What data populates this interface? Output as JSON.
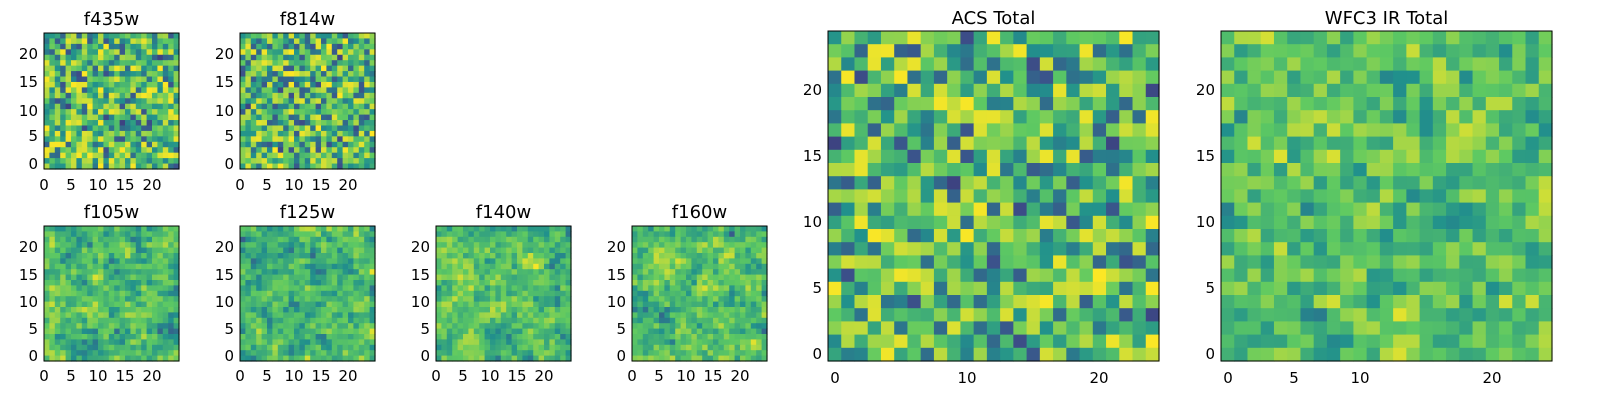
{
  "chart_data": [
    {
      "type": "heatmap",
      "title": "f435w",
      "grid_size": 25,
      "pixelation": 1,
      "seed": 11,
      "smooth": 0,
      "noise": 1.0,
      "x_ticks": [
        "0",
        "5",
        "10",
        "15",
        "20"
      ],
      "y_ticks": [
        "0",
        "5",
        "10",
        "15",
        "20"
      ],
      "colormap": "viridis",
      "grid": false
    },
    {
      "type": "heatmap",
      "title": "f814w",
      "grid_size": 25,
      "pixelation": 1,
      "seed": 23,
      "smooth": 0,
      "noise": 1.0,
      "x_ticks": [
        "0",
        "5",
        "10",
        "15",
        "20"
      ],
      "y_ticks": [
        "0",
        "5",
        "10",
        "15",
        "20"
      ],
      "colormap": "viridis",
      "grid": false
    },
    {
      "type": "heatmap",
      "title": "f105w",
      "grid_size": 25,
      "pixelation": 1,
      "seed": 37,
      "smooth": 1,
      "noise": 0.35,
      "x_ticks": [
        "0",
        "5",
        "10",
        "15",
        "20"
      ],
      "y_ticks": [
        "0",
        "5",
        "10",
        "15",
        "20"
      ],
      "colormap": "viridis",
      "grid": false
    },
    {
      "type": "heatmap",
      "title": "f125w",
      "grid_size": 25,
      "pixelation": 1,
      "seed": 41,
      "smooth": 1,
      "noise": 0.35,
      "x_ticks": [
        "0",
        "5",
        "10",
        "15",
        "20"
      ],
      "y_ticks": [
        "0",
        "5",
        "10",
        "15",
        "20"
      ],
      "colormap": "viridis",
      "grid": false
    },
    {
      "type": "heatmap",
      "title": "f140w",
      "grid_size": 25,
      "pixelation": 1,
      "seed": 53,
      "smooth": 1,
      "noise": 0.35,
      "x_ticks": [
        "0",
        "5",
        "10",
        "15",
        "20"
      ],
      "y_ticks": [
        "0",
        "5",
        "10",
        "15",
        "20"
      ],
      "colormap": "viridis",
      "grid": false
    },
    {
      "type": "heatmap",
      "title": "f160w",
      "grid_size": 25,
      "pixelation": 1,
      "seed": 67,
      "smooth": 1,
      "noise": 0.35,
      "x_ticks": [
        "0",
        "5",
        "10",
        "15",
        "20"
      ],
      "y_ticks": [
        "0",
        "5",
        "10",
        "15",
        "20"
      ],
      "colormap": "viridis",
      "grid": false
    },
    {
      "type": "heatmap",
      "title": "ACS Total",
      "grid_size": 25,
      "pixelation": 1,
      "seed": 71,
      "smooth": 0,
      "noise": 1.0,
      "x_ticks": [
        "0",
        "10",
        "20"
      ],
      "y_ticks": [
        "0",
        "5",
        "10",
        "15",
        "20"
      ],
      "colormap": "viridis",
      "grid": false
    },
    {
      "type": "heatmap",
      "title": "WFC3 IR Total",
      "grid_size": 25,
      "pixelation": 1,
      "seed": 89,
      "smooth": 1,
      "noise": 0.5,
      "x_ticks": [
        "0",
        "5",
        "10",
        "20"
      ],
      "y_ticks": [
        "0",
        "5",
        "10",
        "15",
        "20"
      ],
      "colormap": "viridis",
      "grid": false
    }
  ]
}
